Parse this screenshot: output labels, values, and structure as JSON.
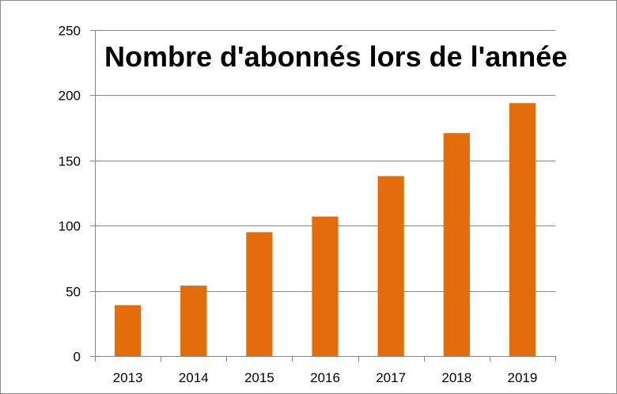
{
  "chart_data": {
    "type": "bar",
    "title": "Nombre d'abonnés lors de l'année",
    "xlabel": "",
    "ylabel": "",
    "categories": [
      "2013",
      "2014",
      "2015",
      "2016",
      "2017",
      "2018",
      "2019"
    ],
    "values": [
      39,
      54,
      95,
      107,
      138,
      171,
      194
    ],
    "ylim": [
      0,
      250
    ],
    "yticks": [
      0,
      50,
      100,
      150,
      200,
      250
    ],
    "grid": true,
    "legend": "none",
    "colors": {
      "bar": "#E46C0A",
      "grid": "#868686",
      "axis": "#868686"
    }
  }
}
